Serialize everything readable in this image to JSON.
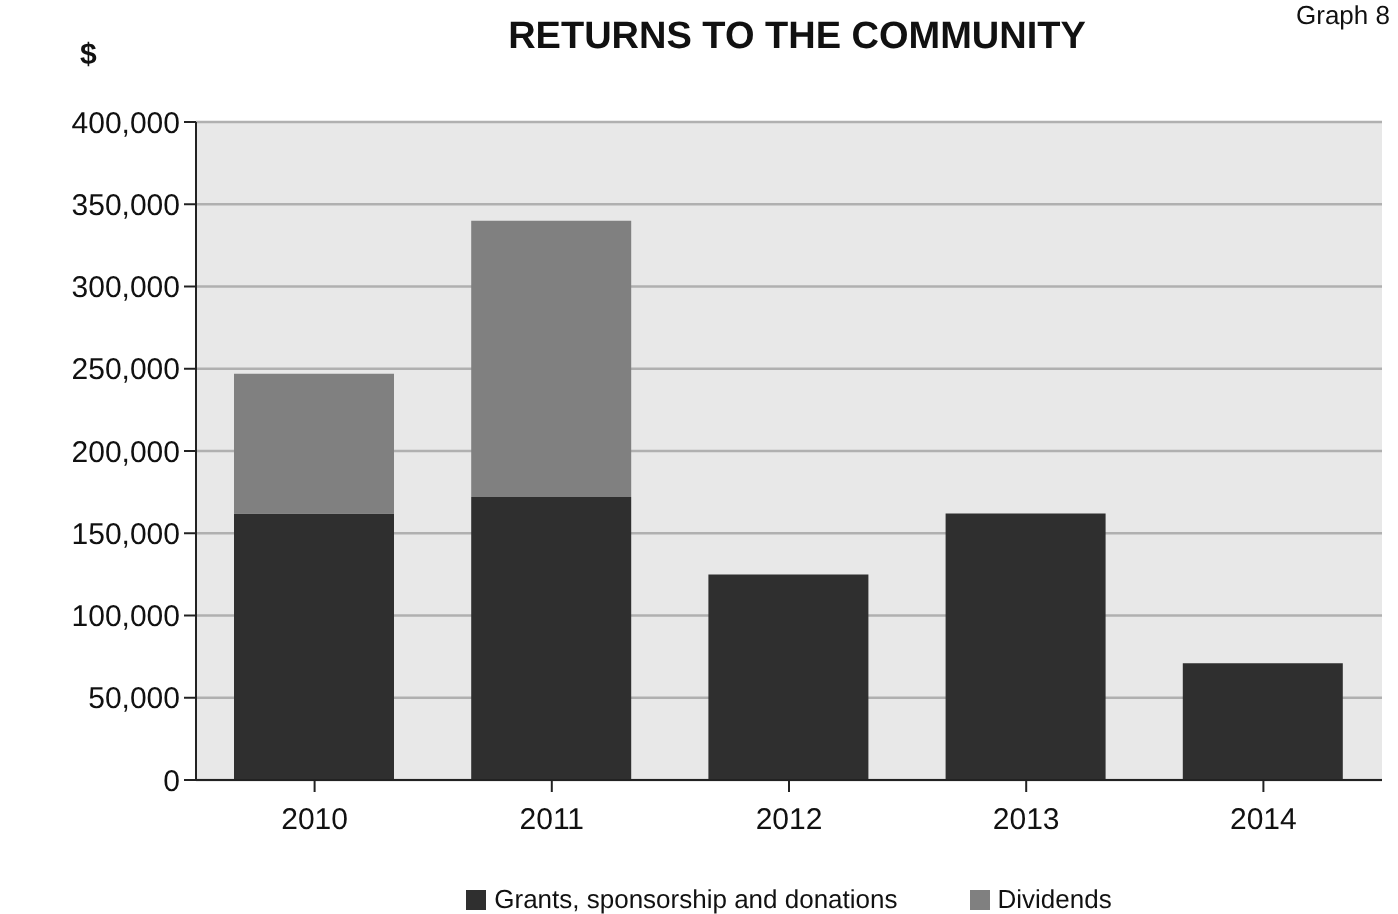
{
  "chart_data": {
    "type": "bar",
    "title": "RETURNS TO THE COMMUNITY",
    "ylabel": "$",
    "annotations": [
      "Graph 8"
    ],
    "categories": [
      "2010",
      "2011",
      "2012",
      "2013",
      "2014"
    ],
    "series": [
      {
        "name": "Grants, sponsorship and donations",
        "color": "#2f2f2f",
        "values": [
          162000,
          172000,
          125000,
          162000,
          71000
        ]
      },
      {
        "name": "Dividends",
        "color": "#808080",
        "values": [
          85000,
          168000,
          null,
          null,
          null
        ]
      }
    ],
    "stacked": true,
    "ylim": [
      0,
      400000
    ],
    "yticks": [
      0,
      {
        "value": 50000,
        "label": "50,000"
      },
      {
        "value": 100000,
        "label": "100,000"
      },
      {
        "value": 150000,
        "label": "150,000"
      },
      {
        "value": 200000,
        "label": "200,000"
      },
      {
        "value": 250000,
        "label": "250,000"
      },
      {
        "value": 300000,
        "label": "300,000"
      },
      {
        "value": 350000,
        "label": "350,000"
      },
      {
        "value": 400000,
        "label": "400,000"
      }
    ],
    "grid": "y",
    "legend": "bottom"
  }
}
